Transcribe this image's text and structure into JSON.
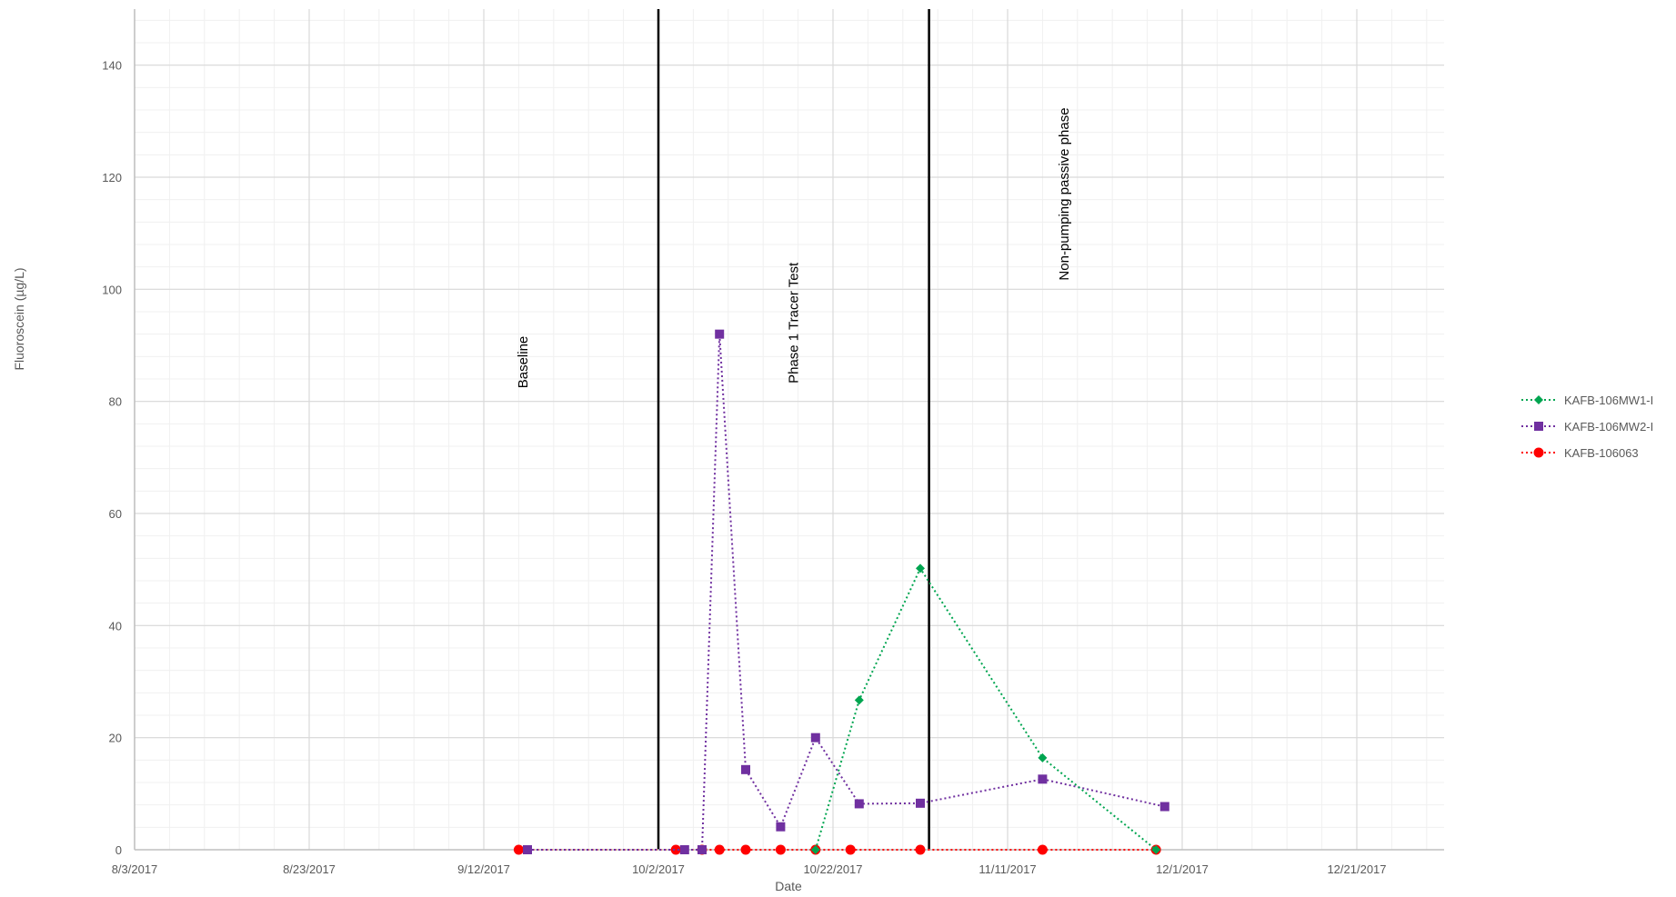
{
  "chart_data": {
    "type": "line",
    "title": "",
    "xlabel": "Date",
    "ylabel": "Fluoroscein (µg/L)",
    "x_axis": {
      "type": "date",
      "min": "2017-08-03",
      "max": "2017-12-31",
      "ticks": [
        "2017-08-03",
        "2017-08-23",
        "2017-09-12",
        "2017-10-02",
        "2017-10-22",
        "2017-11-11",
        "2017-12-01",
        "2017-12-21"
      ],
      "tick_labels": [
        "8/3/2017",
        "8/23/2017",
        "9/12/2017",
        "10/2/2017",
        "10/22/2017",
        "11/11/2017",
        "12/1/2017",
        "12/21/2017"
      ]
    },
    "y_axis": {
      "min": 0,
      "max": 150,
      "ticks": [
        0,
        20,
        40,
        60,
        80,
        100,
        120,
        140
      ],
      "tick_labels": [
        "0",
        "20",
        "40",
        "60",
        "80",
        "100",
        "120",
        "140"
      ]
    },
    "grid": true,
    "legend": {
      "position": "right"
    },
    "phase_lines": [
      "2017-10-02",
      "2017-11-02"
    ],
    "annotations": [
      {
        "text": "Baseline",
        "x": "2017-09-17",
        "y": 87
      },
      {
        "text": "Phase 1 Tracer Test",
        "x": "2017-10-18",
        "y": 94
      },
      {
        "text": "Non-pumping passive phase",
        "x": "2017-11-18",
        "y": 117
      }
    ],
    "series": [
      {
        "name": "KAFB-106MW1-I",
        "color": "#00A550",
        "marker": "diamond",
        "points": [
          {
            "x": "2017-10-20",
            "y": 0
          },
          {
            "x": "2017-10-25",
            "y": 26.7
          },
          {
            "x": "2017-11-01",
            "y": 50.2
          },
          {
            "x": "2017-11-15",
            "y": 16.4
          },
          {
            "x": "2017-11-28",
            "y": 0
          }
        ]
      },
      {
        "name": "KAFB-106MW2-I",
        "color": "#7030A0",
        "marker": "square",
        "points": [
          {
            "x": "2017-09-17",
            "y": 0
          },
          {
            "x": "2017-10-05",
            "y": 0
          },
          {
            "x": "2017-10-07",
            "y": 0
          },
          {
            "x": "2017-10-09",
            "y": 92
          },
          {
            "x": "2017-10-12",
            "y": 14.3
          },
          {
            "x": "2017-10-16",
            "y": 4.1
          },
          {
            "x": "2017-10-20",
            "y": 20
          },
          {
            "x": "2017-10-25",
            "y": 8.2
          },
          {
            "x": "2017-11-01",
            "y": 8.3
          },
          {
            "x": "2017-11-15",
            "y": 12.6
          },
          {
            "x": "2017-11-29",
            "y": 7.7
          }
        ]
      },
      {
        "name": "KAFB-106063",
        "color": "#FF0000",
        "marker": "circle",
        "points": [
          {
            "x": "2017-09-16",
            "y": 0
          },
          {
            "x": "2017-10-04",
            "y": 0
          },
          {
            "x": "2017-10-07",
            "y": 0
          },
          {
            "x": "2017-10-09",
            "y": 0
          },
          {
            "x": "2017-10-12",
            "y": 0
          },
          {
            "x": "2017-10-16",
            "y": 0
          },
          {
            "x": "2017-10-20",
            "y": 0
          },
          {
            "x": "2017-10-24",
            "y": 0
          },
          {
            "x": "2017-11-01",
            "y": 0
          },
          {
            "x": "2017-11-15",
            "y": 0
          },
          {
            "x": "2017-11-28",
            "y": 0
          }
        ]
      }
    ]
  }
}
